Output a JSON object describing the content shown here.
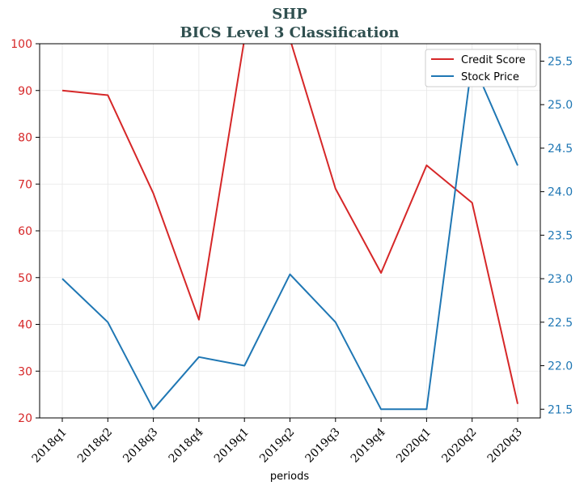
{
  "chart_data": {
    "type": "line",
    "title": "SHP",
    "subtitle": "BICS Level 3 Classification",
    "xlabel": "periods",
    "categories": [
      "2018q1",
      "2018q2",
      "2018q3",
      "2018q4",
      "2019q1",
      "2019q2",
      "2019q3",
      "2019q4",
      "2020q1",
      "2020q2",
      "2020q3"
    ],
    "series": [
      {
        "name": "Credit Score",
        "axis": "left",
        "color": "#d62728",
        "values": [
          90,
          89,
          68,
          41,
          101,
          101,
          69,
          51,
          74,
          66,
          23
        ]
      },
      {
        "name": "Stock Price",
        "axis": "right",
        "color": "#1f77b4",
        "values": [
          23.0,
          22.5,
          21.5,
          22.1,
          22.0,
          23.05,
          22.5,
          21.5,
          21.5,
          25.5,
          24.3
        ]
      }
    ],
    "ylim_left": [
      20,
      100
    ],
    "yticks_left": [
      "20",
      "30",
      "40",
      "50",
      "60",
      "70",
      "80",
      "90",
      "100"
    ],
    "ylim_right": [
      21.4,
      25.7
    ],
    "yticks_right": [
      "21.5",
      "22.0",
      "22.5",
      "23.0",
      "23.5",
      "24.0",
      "24.5",
      "25.0",
      "25.5"
    ],
    "grid": true,
    "legend_position": "top-right"
  }
}
